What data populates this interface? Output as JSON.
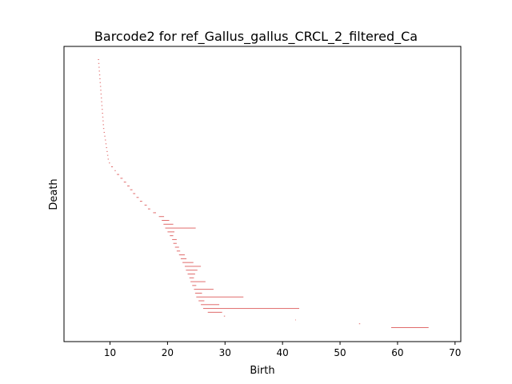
{
  "chart_data": {
    "type": "barcode",
    "title": "Barcode2 for ref_Gallus_gallus_CRCL_2_filtered_Ca",
    "xlabel": "Birth",
    "ylabel": "Death",
    "xlim": [
      2,
      71
    ],
    "x_ticks": [
      10,
      20,
      30,
      40,
      50,
      60,
      70
    ],
    "y_ticks_visible": false,
    "grid": false,
    "legend": "none",
    "bar_color": "#e06c6c",
    "bars_note": "Each bar is a [birth, death] interval drawn as a thin horizontal line; bars are stacked vertically in rank order (top = first).",
    "bars": [
      [
        7.9,
        8.1
      ],
      [
        7.95,
        8.15
      ],
      [
        8.0,
        8.2
      ],
      [
        8.05,
        8.25
      ],
      [
        8.1,
        8.3
      ],
      [
        8.15,
        8.35
      ],
      [
        8.2,
        8.4
      ],
      [
        8.25,
        8.45
      ],
      [
        8.3,
        8.5
      ],
      [
        8.35,
        8.55
      ],
      [
        8.4,
        8.6
      ],
      [
        8.45,
        8.65
      ],
      [
        8.5,
        8.7
      ],
      [
        8.55,
        8.75
      ],
      [
        8.6,
        8.8
      ],
      [
        8.65,
        8.85
      ],
      [
        8.7,
        8.9
      ],
      [
        8.75,
        8.95
      ],
      [
        8.8,
        9.0
      ],
      [
        8.9,
        9.1
      ],
      [
        9.0,
        9.2
      ],
      [
        9.1,
        9.3
      ],
      [
        9.2,
        9.4
      ],
      [
        9.3,
        9.5
      ],
      [
        9.4,
        9.6
      ],
      [
        9.5,
        9.7
      ],
      [
        9.6,
        9.8
      ],
      [
        9.8,
        10.0
      ],
      [
        10.2,
        10.5
      ],
      [
        10.8,
        11.0
      ],
      [
        11.2,
        11.6
      ],
      [
        11.8,
        12.2
      ],
      [
        12.4,
        12.8
      ],
      [
        13.0,
        13.4
      ],
      [
        13.5,
        13.9
      ],
      [
        14.0,
        14.4
      ],
      [
        14.6,
        15.0
      ],
      [
        15.2,
        15.6
      ],
      [
        16.0,
        16.4
      ],
      [
        16.6,
        17.0
      ],
      [
        17.5,
        18.0
      ],
      [
        18.5,
        19.4
      ],
      [
        19.0,
        20.3
      ],
      [
        19.3,
        21.0
      ],
      [
        19.6,
        24.9
      ],
      [
        20.0,
        21.2
      ],
      [
        20.4,
        21.0
      ],
      [
        20.8,
        21.6
      ],
      [
        21.0,
        21.6
      ],
      [
        21.3,
        22.0
      ],
      [
        21.6,
        22.2
      ],
      [
        22.0,
        23.0
      ],
      [
        22.3,
        23.3
      ],
      [
        22.6,
        24.5
      ],
      [
        23.0,
        25.8
      ],
      [
        23.2,
        25.2
      ],
      [
        23.5,
        24.8
      ],
      [
        23.8,
        24.6
      ],
      [
        24.0,
        26.6
      ],
      [
        24.3,
        25.0
      ],
      [
        24.6,
        28.0
      ],
      [
        24.8,
        26.0
      ],
      [
        25.0,
        33.2
      ],
      [
        25.4,
        26.4
      ],
      [
        25.8,
        29.0
      ],
      [
        26.2,
        42.9
      ],
      [
        27.0,
        29.5
      ],
      [
        29.8,
        30.0
      ],
      [
        42.2,
        42.3
      ],
      [
        53.3,
        53.5
      ],
      [
        58.9,
        65.4
      ]
    ]
  }
}
